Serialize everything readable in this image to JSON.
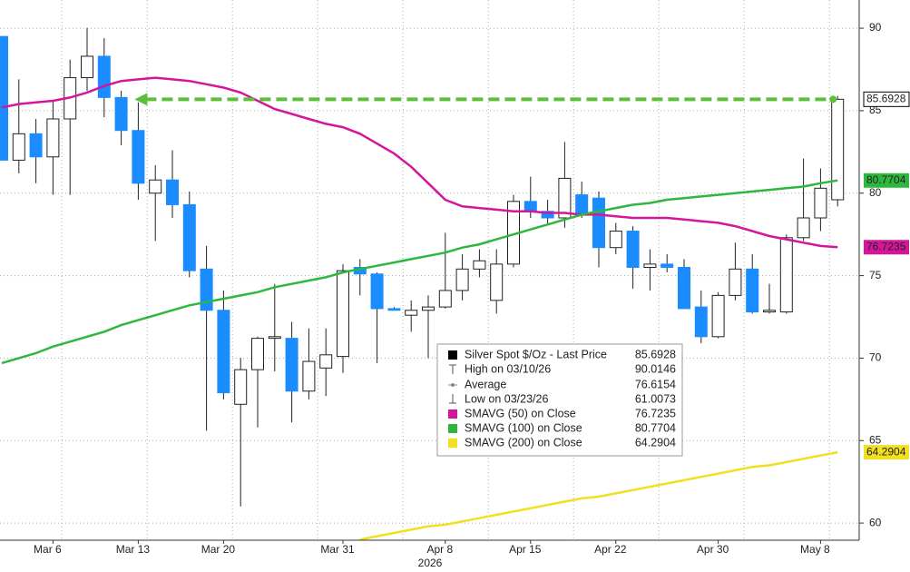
{
  "chart_data": {
    "type": "candlestick",
    "categories": [
      null,
      null,
      null,
      "Mar 6",
      null,
      null,
      null,
      null,
      "Mar 13",
      null,
      null,
      null,
      null,
      "Mar 20",
      null,
      null,
      null,
      null,
      null,
      null,
      "Mar 31",
      null,
      null,
      null,
      null,
      null,
      "Apr 8",
      null,
      null,
      null,
      null,
      "Apr 15",
      null,
      null,
      null,
      null,
      "Apr 22",
      null,
      null,
      null,
      null,
      null,
      "Apr 30",
      null,
      null,
      null,
      null,
      null,
      "May 8",
      null
    ],
    "x_axis_year": "2026",
    "open": [
      89.5,
      82.0,
      83.6,
      82.2,
      84.5,
      87.0,
      88.3,
      85.8,
      83.8,
      80.0,
      80.8,
      79.3,
      75.4,
      72.9,
      67.2,
      69.3,
      71.2,
      71.2,
      68.0,
      69.4,
      70.1,
      75.5,
      75.1,
      73.0,
      72.6,
      72.9,
      73.1,
      74.1,
      75.4,
      73.5,
      75.7,
      79.5,
      78.9,
      78.5,
      79.9,
      79.7,
      76.7,
      77.7,
      75.5,
      75.7,
      75.5,
      73.1,
      71.3,
      73.8,
      75.4,
      72.8,
      72.8,
      77.3,
      78.5,
      79.6
    ],
    "high": [
      89.5,
      86.9,
      84.5,
      85.6,
      88.1,
      90.0146,
      89.4,
      86.2,
      85.5,
      81.7,
      82.6,
      80.1,
      76.8,
      74.1,
      70.0,
      71.3,
      74.5,
      72.2,
      71.8,
      71.8,
      75.7,
      76.0,
      75.2,
      73.1,
      73.5,
      73.8,
      77.6,
      76.3,
      76.6,
      76.6,
      79.9,
      81.0,
      79.6,
      83.1,
      80.7,
      80.1,
      78.2,
      78.0,
      76.6,
      76.3,
      76.0,
      74.1,
      74.0,
      77.0,
      76.3,
      74.5,
      77.5,
      82.1,
      81.5,
      85.9
    ],
    "low": [
      82.0,
      81.2,
      80.6,
      79.9,
      79.9,
      86.2,
      84.6,
      82.9,
      79.6,
      77.1,
      78.5,
      74.9,
      65.6,
      67.5,
      61.0073,
      65.8,
      69.2,
      66.1,
      67.5,
      67.7,
      69.1,
      73.8,
      69.7,
      72.9,
      71.6,
      70.0,
      73.0,
      73.5,
      74.9,
      72.7,
      75.5,
      78.5,
      78.1,
      77.9,
      78.5,
      75.5,
      76.3,
      74.2,
      74.1,
      75.2,
      73.0,
      70.9,
      71.2,
      73.5,
      72.7,
      72.7,
      72.7,
      77.1,
      77.7,
      79.2
    ],
    "close": [
      82.0,
      83.6,
      82.2,
      84.5,
      87.0,
      88.3,
      85.8,
      83.8,
      80.6,
      80.8,
      79.3,
      75.3,
      72.9,
      67.9,
      69.3,
      71.2,
      71.3,
      68.0,
      69.8,
      70.2,
      75.3,
      75.1,
      73.0,
      72.9,
      72.9,
      73.1,
      74.1,
      75.4,
      75.9,
      75.7,
      79.5,
      78.9,
      78.5,
      80.9,
      78.8,
      76.7,
      77.7,
      75.5,
      75.7,
      75.5,
      73.0,
      71.3,
      73.8,
      75.4,
      72.8,
      72.9,
      77.3,
      78.5,
      80.3,
      85.6928
    ],
    "up_color": "#ffffff",
    "down_color": "#1a8cff",
    "series": [
      {
        "name": "SMAVG (50)  on Close",
        "color": "#d4169b",
        "values": [
          85.2,
          85.4,
          85.5,
          85.6,
          85.8,
          86.1,
          86.5,
          86.8,
          86.9,
          87.0,
          86.9,
          86.8,
          86.6,
          86.4,
          86.1,
          85.6,
          85.1,
          84.8,
          84.5,
          84.2,
          84.0,
          83.6,
          83.0,
          82.4,
          81.6,
          80.6,
          79.6,
          79.2,
          79.1,
          79.0,
          78.9,
          78.9,
          78.8,
          78.8,
          78.7,
          78.7,
          78.6,
          78.5,
          78.5,
          78.5,
          78.4,
          78.3,
          78.2,
          78.0,
          77.7,
          77.4,
          77.2,
          77.0,
          76.8,
          76.7235
        ]
      },
      {
        "name": "SMAVG (100)  on Close",
        "color": "#2db83d",
        "values": [
          69.7,
          70.0,
          70.3,
          70.7,
          71.0,
          71.3,
          71.6,
          72.0,
          72.3,
          72.6,
          72.9,
          73.2,
          73.4,
          73.6,
          73.8,
          74.0,
          74.3,
          74.5,
          74.7,
          74.9,
          75.2,
          75.4,
          75.6,
          75.8,
          76.0,
          76.2,
          76.4,
          76.7,
          76.9,
          77.2,
          77.5,
          77.8,
          78.1,
          78.4,
          78.7,
          78.9,
          79.1,
          79.3,
          79.4,
          79.6,
          79.7,
          79.8,
          79.9,
          80.0,
          80.1,
          80.2,
          80.3,
          80.4,
          80.6,
          80.7704
        ]
      },
      {
        "name": "SMAVG (200)  on Close",
        "color": "#f0e020",
        "values": [
          null,
          null,
          null,
          null,
          null,
          null,
          null,
          null,
          null,
          null,
          null,
          null,
          null,
          null,
          null,
          null,
          null,
          null,
          null,
          null,
          null,
          59.0,
          59.2,
          59.4,
          59.6,
          59.8,
          59.9,
          60.1,
          60.3,
          60.5,
          60.7,
          60.9,
          61.1,
          61.3,
          61.5,
          61.6,
          61.8,
          62.0,
          62.2,
          62.4,
          62.6,
          62.8,
          63.0,
          63.2,
          63.4,
          63.5,
          63.7,
          63.9,
          64.1,
          64.2904
        ]
      }
    ],
    "legend_labels": {
      "last": "Silver Spot $/Oz - Last Price",
      "high": "High on 03/10/26",
      "average": "Average",
      "low": "Low on 03/23/26"
    },
    "average": 76.6154,
    "ylim": [
      58.96,
      91.71
    ],
    "yticks": [
      60,
      65,
      70,
      75,
      80,
      85,
      90
    ],
    "grid": true,
    "target_line_color": "#5cbf3a"
  }
}
